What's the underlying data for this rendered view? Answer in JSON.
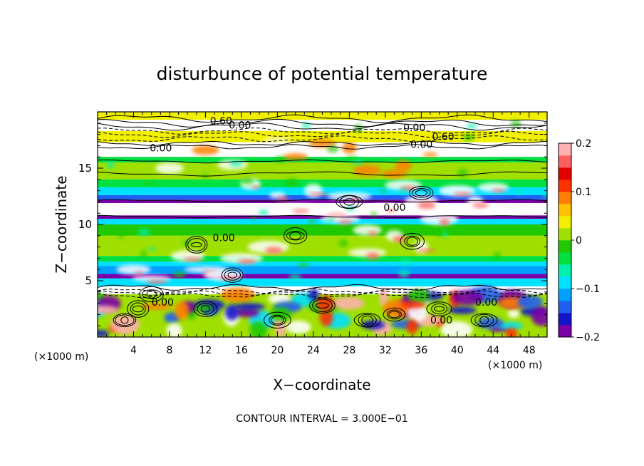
{
  "chart_data": {
    "type": "heatmap",
    "title": "disturbunce of potential temperature",
    "xlabel": "X−coordinate",
    "ylabel": "Z−coordinate",
    "x_unit": "(×1000 m)",
    "y_unit": "(×1000 m)",
    "footer": "CONTOUR INTERVAL = 3.000E−01",
    "xlim": [
      0,
      50
    ],
    "ylim": [
      0,
      20
    ],
    "x_ticks": [
      4,
      8,
      12,
      16,
      20,
      24,
      28,
      32,
      36,
      40,
      44,
      48
    ],
    "y_ticks": [
      5,
      10,
      15
    ],
    "colorbar": {
      "range": [
        -0.2,
        0.2
      ],
      "tick_values": [
        0.2,
        0.1,
        0,
        -0.1,
        -0.2
      ],
      "tick_labels": [
        "0.2",
        "0.1",
        "0",
        "−0.1",
        "−0.2"
      ],
      "colors": [
        "#7a00a8",
        "#1414c8",
        "#2060f0",
        "#00a0ff",
        "#00e0ff",
        "#00f0b0",
        "#00e040",
        "#20c800",
        "#a0e000",
        "#f0f000",
        "#ffc000",
        "#ff8000",
        "#ff3000",
        "#e00000",
        "#ff6060",
        "#ffb0b0"
      ]
    },
    "contour_labels": [
      {
        "x": 12.5,
        "y": 18.9,
        "text": "0.60"
      },
      {
        "x": 14.6,
        "y": 18.5,
        "text": "0.00"
      },
      {
        "x": 34.0,
        "y": 18.3,
        "text": "0.00"
      },
      {
        "x": 37.2,
        "y": 17.5,
        "text": "0.60"
      },
      {
        "x": 34.8,
        "y": 16.8,
        "text": "0.00"
      },
      {
        "x": 5.8,
        "y": 16.5,
        "text": "0.00"
      },
      {
        "x": 31.8,
        "y": 11.2,
        "text": "0.00"
      },
      {
        "x": 12.8,
        "y": 8.5,
        "text": "0.00"
      },
      {
        "x": 6.0,
        "y": 2.8,
        "text": "0.00"
      },
      {
        "x": 42.0,
        "y": 2.8,
        "text": "0.00"
      },
      {
        "x": 37.0,
        "y": 1.2,
        "text": "0.00"
      }
    ],
    "bands": [
      {
        "z0": 19.3,
        "z1": 20.0,
        "value": 0.03
      },
      {
        "z0": 18.3,
        "z1": 19.3,
        "value": 0.4
      },
      {
        "z0": 17.3,
        "z1": 18.3,
        "value": 0.03
      },
      {
        "z0": 16.7,
        "z1": 17.3,
        "value": 0.4
      },
      {
        "z0": 16.0,
        "z1": 16.7,
        "value": -0.35
      },
      {
        "z0": 15.5,
        "z1": 16.0,
        "value": -0.05
      },
      {
        "z0": 14.0,
        "z1": 15.5,
        "value": 0.0
      },
      {
        "z0": 13.3,
        "z1": 14.0,
        "value": -0.04
      },
      {
        "z0": 12.6,
        "z1": 13.3,
        "value": -0.1
      },
      {
        "z0": 12.2,
        "z1": 12.6,
        "value": -0.14
      },
      {
        "z0": 11.9,
        "z1": 12.2,
        "value": -0.2
      },
      {
        "z0": 10.8,
        "z1": 11.9,
        "value": 0.4
      },
      {
        "z0": 10.5,
        "z1": 10.8,
        "value": -0.2
      },
      {
        "z0": 10.0,
        "z1": 10.5,
        "value": -0.08
      },
      {
        "z0": 9.0,
        "z1": 10.0,
        "value": -0.02
      },
      {
        "z0": 7.2,
        "z1": 9.0,
        "value": 0.0
      },
      {
        "z0": 6.7,
        "z1": 7.2,
        "value": -0.04
      },
      {
        "z0": 6.3,
        "z1": 6.7,
        "value": -0.08
      },
      {
        "z0": 5.6,
        "z1": 6.3,
        "value": -0.12
      },
      {
        "z0": 5.2,
        "z1": 5.6,
        "value": -0.18
      },
      {
        "z0": 4.5,
        "z1": 5.2,
        "value": -0.1
      },
      {
        "z0": 3.8,
        "z1": 4.5,
        "value": 0.4
      },
      {
        "z0": 0.0,
        "z1": 3.8,
        "value": 0.0
      }
    ]
  }
}
